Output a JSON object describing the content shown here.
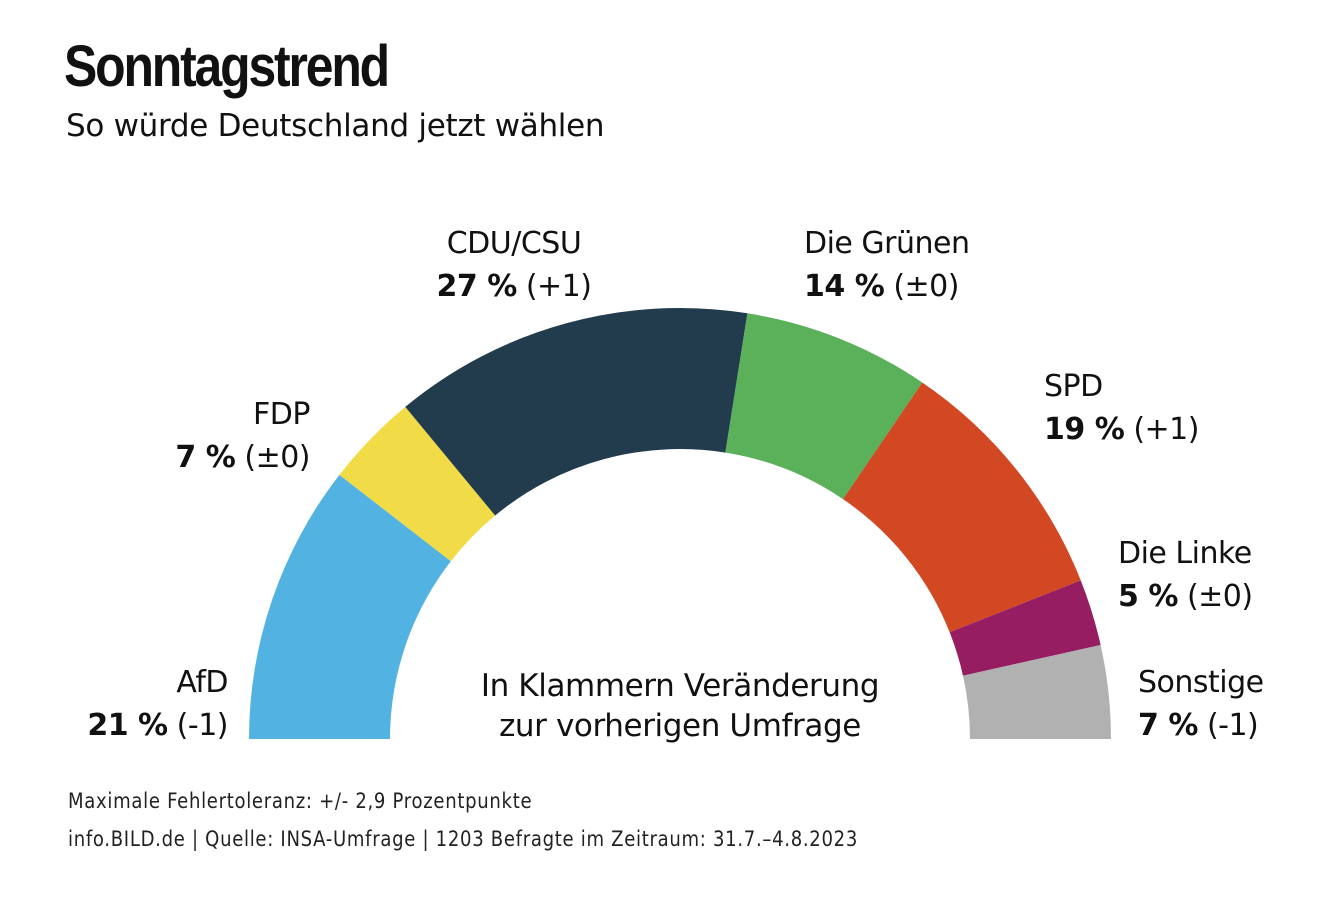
{
  "header": {
    "title": "Sonntagstrend",
    "subtitle": "So würde Deutschland jetzt wählen"
  },
  "chart_data": {
    "type": "pie",
    "variant": "half-donut",
    "title": "Sonntagstrend",
    "subtitle": "So würde Deutschland jetzt wählen",
    "unit": "%",
    "total": 100,
    "series": [
      {
        "name": "AfD",
        "value": 21,
        "change": "(-1)",
        "value_label": "21 %",
        "color": "#52B2E1"
      },
      {
        "name": "FDP",
        "value": 7,
        "change": "(±0)",
        "value_label": "7 %",
        "color": "#F1DC48"
      },
      {
        "name": "CDU/CSU",
        "value": 27,
        "change": "(+1)",
        "value_label": "27 %",
        "color": "#223C4E"
      },
      {
        "name": "Die Grünen",
        "value": 14,
        "change": "(±0)",
        "value_label": "14 %",
        "color": "#5BB05A"
      },
      {
        "name": "SPD",
        "value": 19,
        "change": "(+1)",
        "value_label": "19 %",
        "color": "#D24823"
      },
      {
        "name": "Die Linke",
        "value": 5,
        "change": "(±0)",
        "value_label": "5 %",
        "color": "#961D62"
      },
      {
        "name": "Sonstige",
        "value": 7,
        "change": "(-1)",
        "value_label": "7 %",
        "color": "#B1B1B1"
      }
    ],
    "center_note": [
      "In Klammern Veränderung",
      "zur vorherigen Umfrage"
    ]
  },
  "footer": {
    "tolerance": "Maximale Fehlertoleranz: +/- 2,9 Prozentpunkte",
    "source": "info.BILD.de | Quelle: INSA-Umfrage | 1203 Befragte im Zeitraum: 31.7.–4.8.2023"
  }
}
